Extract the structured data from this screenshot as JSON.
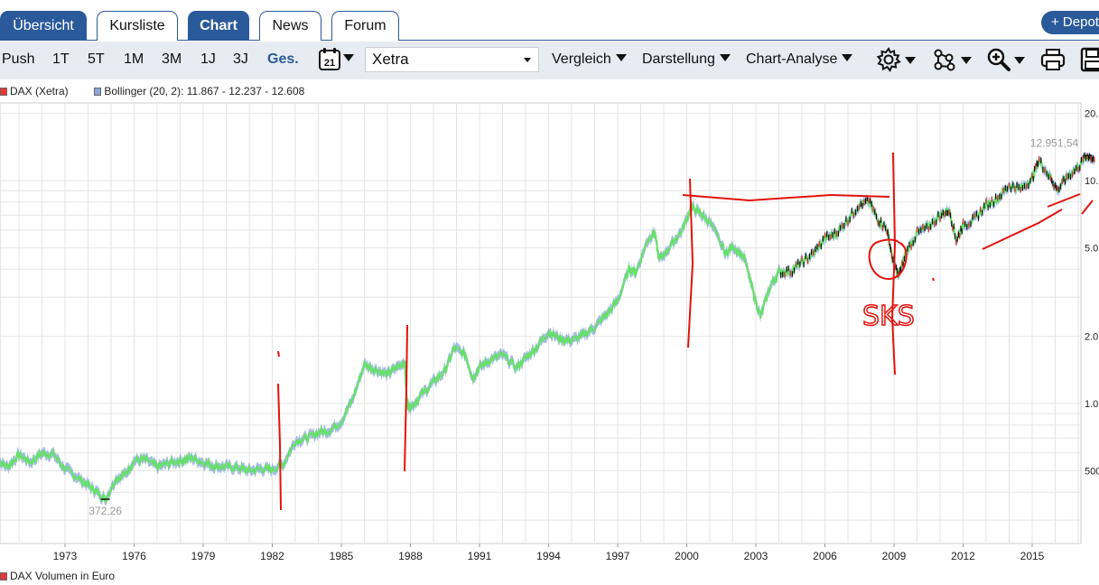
{
  "tabs": [
    {
      "label": "Übersicht",
      "active": true
    },
    {
      "label": "Kursliste",
      "active": false
    },
    {
      "label": "Chart",
      "active": true
    },
    {
      "label": "News",
      "active": false
    },
    {
      "label": "Forum",
      "active": false
    }
  ],
  "depot_button": "+ Depot",
  "periods": [
    "Push",
    "1T",
    "5T",
    "1M",
    "3M",
    "1J",
    "3J",
    "Ges."
  ],
  "active_period": "Ges.",
  "calendar_icon_label": "21",
  "exchange": "Xetra",
  "menus": [
    "Vergleich",
    "Darstellung",
    "Chart-Analyse"
  ],
  "tool_icons": [
    "gear-icon",
    "network-icon",
    "zoom-icon",
    "print-icon",
    "save-icon"
  ],
  "legend": {
    "main": "DAX (Xetra)",
    "bollinger": "Bollinger (20, 2): 11.867 - 12.237 - 12.608",
    "volume": "DAX Volumen in Euro"
  },
  "colors": {
    "brand_blue": "#2b5a9b",
    "price_line": "#66e06a",
    "bollinger_band": "#8aa7d8",
    "annotation_red": "#e3120b"
  },
  "chart_data": {
    "type": "line",
    "scale": "log",
    "x_ticks": [
      "1973",
      "1976",
      "1979",
      "1982",
      "1985",
      "1988",
      "1991",
      "1994",
      "1997",
      "2000",
      "2003",
      "2006",
      "2009",
      "2012",
      "2015"
    ],
    "y_ticks": [
      "20.",
      "10.",
      "5.0",
      "2.0",
      "1.0",
      "500"
    ],
    "ylim": [
      300,
      22000
    ],
    "annotations": {
      "low": {
        "label": "372,26",
        "year": 1974.75,
        "value": 372.26
      },
      "high": {
        "label": "12.951,54",
        "year": 2017.4,
        "value": 12951.54
      },
      "handwritten_note": "SKS"
    },
    "series": [
      {
        "name": "DAX (Xetra)",
        "points": [
          [
            1970.0,
            560
          ],
          [
            1970.5,
            520
          ],
          [
            1971.0,
            590
          ],
          [
            1971.5,
            545
          ],
          [
            1972.0,
            600
          ],
          [
            1972.5,
            590
          ],
          [
            1973.0,
            510
          ],
          [
            1973.5,
            470
          ],
          [
            1974.0,
            430
          ],
          [
            1974.4,
            400
          ],
          [
            1974.75,
            372
          ],
          [
            1975.2,
            460
          ],
          [
            1975.6,
            480
          ],
          [
            1976.0,
            555
          ],
          [
            1976.5,
            560
          ],
          [
            1977.0,
            520
          ],
          [
            1977.5,
            540
          ],
          [
            1978.0,
            555
          ],
          [
            1978.5,
            570
          ],
          [
            1979.0,
            545
          ],
          [
            1979.5,
            525
          ],
          [
            1980.0,
            520
          ],
          [
            1980.5,
            515
          ],
          [
            1981.0,
            500
          ],
          [
            1981.5,
            510
          ],
          [
            1982.0,
            505
          ],
          [
            1982.5,
            540
          ],
          [
            1983.0,
            680
          ],
          [
            1983.5,
            700
          ],
          [
            1984.0,
            740
          ],
          [
            1984.5,
            760
          ],
          [
            1985.0,
            830
          ],
          [
            1985.5,
            1050
          ],
          [
            1986.0,
            1500
          ],
          [
            1986.5,
            1420
          ],
          [
            1987.0,
            1350
          ],
          [
            1987.4,
            1450
          ],
          [
            1987.75,
            1550
          ],
          [
            1987.85,
            1000
          ],
          [
            1988.0,
            960
          ],
          [
            1988.5,
            1100
          ],
          [
            1989.0,
            1250
          ],
          [
            1989.5,
            1400
          ],
          [
            1989.9,
            1780
          ],
          [
            1990.4,
            1650
          ],
          [
            1990.7,
            1300
          ],
          [
            1991.0,
            1450
          ],
          [
            1991.5,
            1580
          ],
          [
            1992.0,
            1650
          ],
          [
            1992.6,
            1450
          ],
          [
            1993.0,
            1600
          ],
          [
            1993.5,
            1800
          ],
          [
            1994.0,
            2100
          ],
          [
            1994.5,
            1950
          ],
          [
            1995.0,
            1920
          ],
          [
            1995.5,
            2020
          ],
          [
            1996.0,
            2200
          ],
          [
            1996.5,
            2500
          ],
          [
            1997.0,
            2900
          ],
          [
            1997.5,
            4000
          ],
          [
            1997.8,
            3900
          ],
          [
            1998.3,
            5400
          ],
          [
            1998.6,
            5900
          ],
          [
            1998.8,
            4400
          ],
          [
            1999.3,
            5100
          ],
          [
            1999.8,
            6000
          ],
          [
            2000.2,
            7600
          ],
          [
            2000.6,
            7100
          ],
          [
            2001.0,
            6500
          ],
          [
            2001.7,
            4700
          ],
          [
            2002.0,
            5100
          ],
          [
            2002.5,
            4500
          ],
          [
            2002.9,
            3100
          ],
          [
            2003.2,
            2450
          ],
          [
            2003.6,
            3300
          ],
          [
            2004.0,
            3900
          ],
          [
            2004.5,
            3900
          ],
          [
            2005.0,
            4300
          ],
          [
            2005.5,
            4700
          ],
          [
            2006.0,
            5500
          ],
          [
            2006.5,
            5800
          ],
          [
            2007.0,
            6700
          ],
          [
            2007.5,
            7800
          ],
          [
            2007.9,
            8050
          ],
          [
            2008.3,
            6700
          ],
          [
            2008.7,
            6000
          ],
          [
            2008.9,
            4600
          ],
          [
            2009.2,
            3700
          ],
          [
            2009.5,
            4700
          ],
          [
            2010.0,
            5800
          ],
          [
            2010.5,
            6200
          ],
          [
            2011.0,
            7000
          ],
          [
            2011.4,
            7400
          ],
          [
            2011.7,
            5400
          ],
          [
            2012.0,
            6300
          ],
          [
            2012.5,
            6700
          ],
          [
            2013.0,
            7800
          ],
          [
            2013.5,
            8300
          ],
          [
            2014.0,
            9500
          ],
          [
            2014.5,
            9200
          ],
          [
            2015.0,
            10200
          ],
          [
            2015.3,
            12300
          ],
          [
            2015.8,
            10300
          ],
          [
            2016.1,
            9000
          ],
          [
            2016.5,
            10400
          ],
          [
            2017.0,
            11500
          ],
          [
            2017.4,
            12951
          ],
          [
            2017.7,
            12400
          ]
        ]
      }
    ]
  }
}
